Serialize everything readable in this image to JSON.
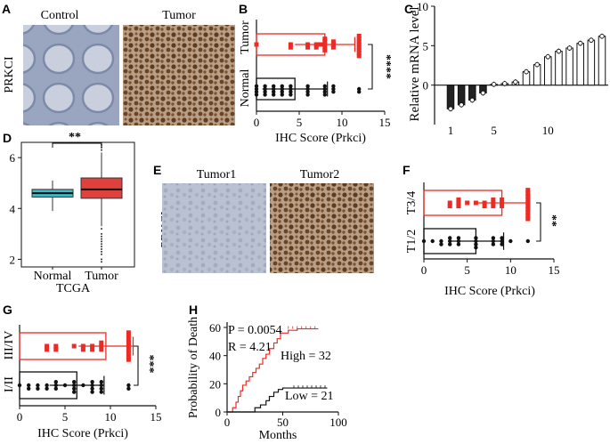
{
  "panel_letters": [
    "A",
    "B",
    "C",
    "D",
    "E",
    "F",
    "G",
    "H"
  ],
  "panel_A": {
    "row_label": "PRKCI",
    "col_labels": [
      "Control",
      "Tumor"
    ]
  },
  "panel_E": {
    "row_label": "PRKCI",
    "col_labels": [
      "Tumor1",
      "Tumor2"
    ]
  },
  "colors": {
    "tumor_red": "#ee2a24",
    "normal_black": "#111111",
    "boxplot_teal": "#3fb9c7",
    "boxplot_red": "#e0413c",
    "ihc_blue": "#b8c0d2",
    "ihc_brown": "#8c6a48"
  },
  "chart_data": [
    {
      "id": "B",
      "type": "scatter",
      "xlabel": "IHC Score (Prkci)",
      "xlim": [
        0,
        15
      ],
      "xticks": [
        "0",
        "5",
        "10",
        "15"
      ],
      "groups": [
        {
          "name": "Tumor",
          "color": "#ee2a24",
          "mean": 8.0,
          "sd": 3.5,
          "points": [
            0,
            4,
            4,
            6,
            6,
            7,
            7,
            7.5,
            8,
            8,
            8,
            8,
            8,
            9,
            9,
            9,
            12,
            12,
            12,
            12,
            12,
            12,
            12,
            12
          ]
        },
        {
          "name": "Normal",
          "color": "#111111",
          "mean": 4.5,
          "sd": 3.8,
          "points": [
            0,
            0,
            0,
            0,
            1,
            1,
            1,
            1,
            2,
            2,
            2,
            2,
            3,
            3,
            3,
            3,
            4,
            4,
            4,
            4,
            6,
            6,
            6,
            6,
            8,
            8,
            8,
            8,
            9,
            9,
            9,
            12,
            12
          ]
        }
      ],
      "significance": "****"
    },
    {
      "id": "C",
      "type": "bar",
      "ylabel": "Relative mRNA level",
      "ylim": [
        -5,
        10
      ],
      "yticks": [
        "0",
        "5",
        "10"
      ],
      "xticks": [
        "1",
        "5",
        "10"
      ],
      "categories": [
        "1",
        "2",
        "3",
        "4",
        "5",
        "6",
        "7",
        "8",
        "9",
        "10",
        "11",
        "12",
        "13",
        "14",
        "15"
      ],
      "values": [
        -3.0,
        -2.5,
        -1.9,
        -1.0,
        0.1,
        0.2,
        0.4,
        1.7,
        2.6,
        3.6,
        4.3,
        4.7,
        5.3,
        5.7,
        6.2
      ]
    },
    {
      "id": "D",
      "type": "boxplot",
      "xlabel": "TCGA",
      "ylim": [
        1.7,
        6.6
      ],
      "yticks": [
        "2",
        "4",
        "6"
      ],
      "categories": [
        "Normal",
        "Tumor"
      ],
      "boxes": [
        {
          "name": "Normal",
          "color": "#3fb9c7",
          "q1": 4.45,
          "median": 4.6,
          "q3": 4.75,
          "whisker_low": 3.9,
          "whisker_high": 5.1,
          "outliers": []
        },
        {
          "name": "Tumor",
          "color": "#e0413c",
          "q1": 4.4,
          "median": 4.75,
          "q3": 5.2,
          "whisker_low": 3.3,
          "whisker_high": 6.2,
          "outliers": [
            3.2,
            3.0,
            2.9,
            2.8,
            2.7,
            2.6,
            2.5,
            2.4,
            2.3,
            2.2,
            2.0,
            1.9,
            6.3,
            6.4,
            6.5
          ]
        }
      ],
      "significance": "**"
    },
    {
      "id": "F",
      "type": "scatter",
      "xlabel": "IHC Score (Prkci)",
      "xlim": [
        0,
        15
      ],
      "xticks": [
        "0",
        "5",
        "10",
        "15"
      ],
      "groups": [
        {
          "name": "T3/4",
          "color": "#ee2a24",
          "mean": 9.0,
          "sd": 3.2,
          "points": [
            3,
            3,
            4,
            4,
            4,
            5,
            6,
            7,
            7,
            8,
            8,
            8,
            9,
            9,
            9,
            12,
            12,
            12,
            12,
            12,
            12,
            12,
            12,
            12,
            12
          ]
        },
        {
          "name": "T1/2",
          "color": "#111111",
          "mean": 6.0,
          "sd": 3.2,
          "points": [
            0,
            1,
            2,
            2,
            3,
            3,
            3,
            4,
            4,
            4,
            6,
            6,
            6,
            6,
            8,
            8,
            8,
            9,
            9,
            9,
            10,
            12
          ]
        }
      ],
      "significance": "**"
    },
    {
      "id": "G",
      "type": "scatter",
      "xlabel": "IHC Score (Prkci)",
      "xlim": [
        0,
        15
      ],
      "xticks": [
        "0",
        "5",
        "10",
        "15"
      ],
      "groups": [
        {
          "name": "III/IV",
          "color": "#ee2a24",
          "mean": 9.5,
          "sd": 3.0,
          "points": [
            3,
            3,
            4,
            4,
            6,
            7,
            7,
            8,
            8,
            9,
            9,
            9,
            12,
            12,
            12,
            12,
            12,
            12,
            12,
            12,
            12
          ]
        },
        {
          "name": "I/II",
          "color": "#111111",
          "mean": 6.3,
          "sd": 3.0,
          "points": [
            0,
            1,
            1,
            2,
            2,
            3,
            3,
            4,
            4,
            4,
            5,
            6,
            6,
            6,
            6,
            7,
            8,
            8,
            8,
            8,
            9,
            9,
            9,
            9,
            12,
            12
          ]
        }
      ],
      "significance": "***"
    },
    {
      "id": "H",
      "type": "line",
      "xlabel": "Months",
      "ylabel": "Probability of Death",
      "xlim": [
        0,
        100
      ],
      "ylim": [
        0,
        60
      ],
      "xticks": [
        "0",
        "50",
        "100"
      ],
      "yticks": [
        "0",
        "20",
        "40",
        "60"
      ],
      "annotations": [
        "P = 0.0054",
        "R = 4.21"
      ],
      "series": [
        {
          "name": "High = 32",
          "color": "#ee2a24",
          "x": [
            0,
            5,
            8,
            10,
            12,
            14,
            17,
            20,
            23,
            26,
            29,
            32,
            35,
            38,
            42,
            45,
            48,
            55,
            63,
            75,
            82
          ],
          "y": [
            0,
            3,
            7,
            11,
            15,
            19,
            22,
            25,
            28,
            31,
            34,
            38,
            41,
            45,
            49,
            52,
            56,
            58,
            59,
            59,
            59
          ]
        },
        {
          "name": "Low = 21",
          "color": "#111111",
          "x": [
            0,
            15,
            25,
            30,
            35,
            38,
            42,
            46,
            50,
            60,
            70,
            80,
            90
          ],
          "y": [
            0,
            0,
            3,
            5,
            8,
            11,
            14,
            16,
            17,
            17,
            17,
            17,
            17
          ]
        }
      ]
    }
  ]
}
